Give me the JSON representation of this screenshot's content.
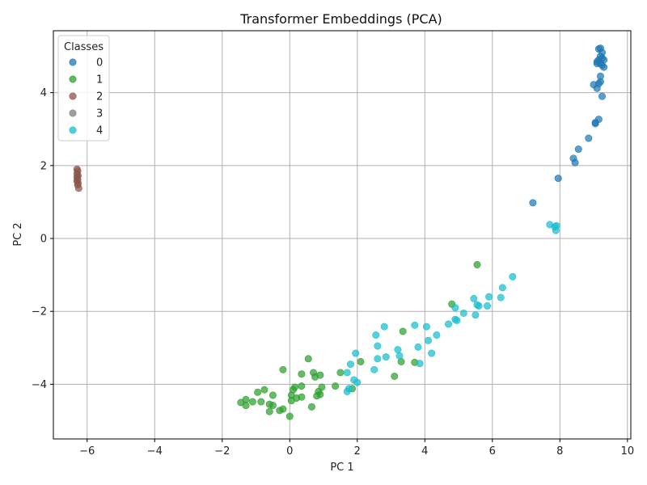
{
  "chart_data": {
    "type": "scatter",
    "title": "Transformer Embeddings (PCA)",
    "xlabel": "PC 1",
    "ylabel": "PC 2",
    "xlim": [
      -7.0,
      10.1
    ],
    "ylim": [
      -5.5,
      5.7
    ],
    "xticks": [
      -6,
      -4,
      -2,
      0,
      2,
      4,
      6,
      8,
      10
    ],
    "yticks": [
      -4,
      -2,
      0,
      2,
      4
    ],
    "grid": true,
    "legend": {
      "title": "Classes",
      "placement": "top-left"
    },
    "series": [
      {
        "name": "0",
        "color": "#1f77b4",
        "points": [
          [
            9.15,
            5.2
          ],
          [
            9.2,
            5.22
          ],
          [
            9.25,
            5.1
          ],
          [
            9.2,
            5.0
          ],
          [
            9.3,
            4.9
          ],
          [
            9.1,
            4.85
          ],
          [
            9.2,
            4.8
          ],
          [
            9.25,
            4.75
          ],
          [
            9.3,
            4.7
          ],
          [
            9.15,
            4.9
          ],
          [
            9.1,
            4.8
          ],
          [
            9.25,
            4.95
          ],
          [
            9.2,
            4.45
          ],
          [
            9.2,
            4.3
          ],
          [
            9.15,
            4.25
          ],
          [
            9.0,
            4.22
          ],
          [
            9.1,
            4.12
          ],
          [
            9.25,
            3.9
          ],
          [
            9.15,
            3.27
          ],
          [
            9.05,
            3.18
          ],
          [
            9.05,
            3.15
          ],
          [
            8.85,
            2.75
          ],
          [
            8.55,
            2.45
          ],
          [
            8.4,
            2.2
          ],
          [
            8.45,
            2.08
          ],
          [
            7.95,
            1.65
          ],
          [
            7.2,
            0.98
          ]
        ]
      },
      {
        "name": "1",
        "color": "#2ca02c",
        "points": [
          [
            5.55,
            -0.72
          ],
          [
            4.8,
            -1.8
          ],
          [
            3.35,
            -2.55
          ],
          [
            3.7,
            -3.4
          ],
          [
            3.3,
            -3.38
          ],
          [
            3.1,
            -3.78
          ],
          [
            2.1,
            -3.38
          ],
          [
            1.5,
            -3.68
          ],
          [
            1.35,
            -4.05
          ],
          [
            1.85,
            -4.12
          ],
          [
            0.55,
            -3.3
          ],
          [
            0.35,
            -3.72
          ],
          [
            0.7,
            -3.68
          ],
          [
            0.9,
            -3.75
          ],
          [
            0.75,
            -3.8
          ],
          [
            -0.2,
            -3.6
          ],
          [
            0.95,
            -4.08
          ],
          [
            0.35,
            -4.05
          ],
          [
            0.15,
            -4.08
          ],
          [
            0.1,
            -4.15
          ],
          [
            0.85,
            -4.2
          ],
          [
            0.9,
            -4.28
          ],
          [
            0.8,
            -4.32
          ],
          [
            0.35,
            -4.35
          ],
          [
            0.2,
            -4.38
          ],
          [
            0.05,
            -4.3
          ],
          [
            0.05,
            -4.45
          ],
          [
            -0.5,
            -4.3
          ],
          [
            -0.75,
            -4.15
          ],
          [
            -0.95,
            -4.22
          ],
          [
            -1.1,
            -4.48
          ],
          [
            -1.3,
            -4.42
          ],
          [
            -1.45,
            -4.5
          ],
          [
            -1.3,
            -4.58
          ],
          [
            -0.85,
            -4.48
          ],
          [
            -0.6,
            -4.55
          ],
          [
            -0.5,
            -4.58
          ],
          [
            -0.6,
            -4.75
          ],
          [
            -0.3,
            -4.72
          ],
          [
            -0.2,
            -4.68
          ],
          [
            0.0,
            -4.88
          ],
          [
            0.65,
            -4.62
          ]
        ]
      },
      {
        "name": "2",
        "color": "#8c564b",
        "points": [
          [
            -6.3,
            1.9
          ],
          [
            -6.28,
            1.85
          ],
          [
            -6.3,
            1.78
          ],
          [
            -6.27,
            1.72
          ],
          [
            -6.3,
            1.68
          ],
          [
            -6.28,
            1.62
          ],
          [
            -6.3,
            1.58
          ],
          [
            -6.27,
            1.52
          ],
          [
            -6.28,
            1.47
          ],
          [
            -6.25,
            1.38
          ]
        ]
      },
      {
        "name": "3",
        "color": "#7f7f7f",
        "points": []
      },
      {
        "name": "4",
        "color": "#17becf",
        "points": [
          [
            7.7,
            0.38
          ],
          [
            7.9,
            0.35
          ],
          [
            7.85,
            0.32
          ],
          [
            7.88,
            0.22
          ],
          [
            6.6,
            -1.05
          ],
          [
            6.3,
            -1.35
          ],
          [
            6.25,
            -1.62
          ],
          [
            5.9,
            -1.6
          ],
          [
            5.45,
            -1.65
          ],
          [
            5.6,
            -1.85
          ],
          [
            5.55,
            -1.82
          ],
          [
            5.85,
            -1.85
          ],
          [
            4.9,
            -1.9
          ],
          [
            5.15,
            -2.05
          ],
          [
            5.5,
            -2.1
          ],
          [
            4.9,
            -2.22
          ],
          [
            4.95,
            -2.25
          ],
          [
            4.7,
            -2.35
          ],
          [
            3.7,
            -2.38
          ],
          [
            4.05,
            -2.42
          ],
          [
            2.8,
            -2.42
          ],
          [
            4.35,
            -2.65
          ],
          [
            2.55,
            -2.65
          ],
          [
            4.1,
            -2.8
          ],
          [
            2.6,
            -2.95
          ],
          [
            3.8,
            -2.98
          ],
          [
            3.2,
            -3.05
          ],
          [
            1.95,
            -3.15
          ],
          [
            4.2,
            -3.15
          ],
          [
            3.25,
            -3.22
          ],
          [
            2.85,
            -3.25
          ],
          [
            2.6,
            -3.3
          ],
          [
            3.85,
            -3.43
          ],
          [
            1.8,
            -3.45
          ],
          [
            2.5,
            -3.6
          ],
          [
            1.7,
            -3.68
          ],
          [
            1.9,
            -3.88
          ],
          [
            2.0,
            -3.95
          ],
          [
            1.75,
            -4.12
          ],
          [
            1.7,
            -4.2
          ]
        ]
      }
    ]
  }
}
